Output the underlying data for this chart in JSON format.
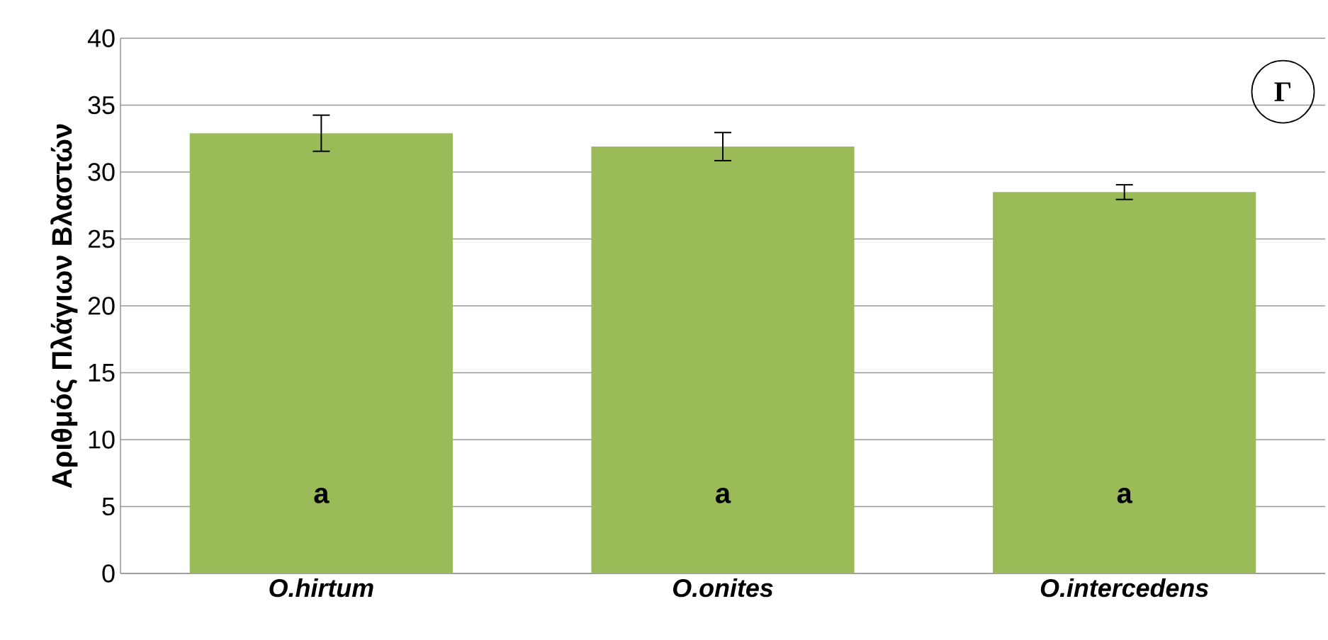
{
  "chart_data": {
    "type": "bar",
    "ylabel": "Αριθμός Πλάγιων Βλαστών",
    "categories": [
      "*O.hirtum*",
      "*O.onites*",
      "*O.intercedens*"
    ],
    "values": [
      32.9,
      31.9,
      28.5
    ],
    "errors": [
      1.35,
      1.05,
      0.55
    ],
    "color": "#9bbb59",
    "ylim": [
      0,
      40
    ],
    "yticks": [
      0,
      5,
      10,
      15,
      20,
      25,
      30,
      35,
      40
    ],
    "grid": "y",
    "annotations": [
      "a",
      "a",
      "a",
      "Γ"
    ]
  }
}
